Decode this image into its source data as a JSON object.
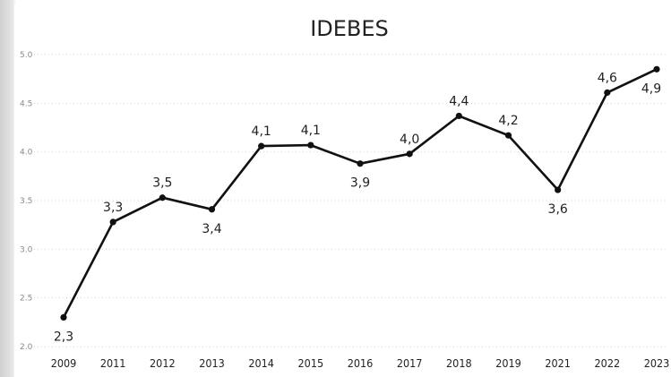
{
  "chart_data": {
    "type": "line",
    "title": "IDEBES",
    "xlabel": "",
    "ylabel": "",
    "categories": [
      "2009",
      "2011",
      "2012",
      "2013",
      "2014",
      "2015",
      "2016",
      "2017",
      "2018",
      "2019",
      "2021",
      "2022",
      "2023"
    ],
    "values": [
      2.3,
      3.28,
      3.53,
      3.41,
      4.06,
      4.07,
      3.88,
      3.98,
      4.37,
      4.17,
      3.61,
      4.61,
      4.85
    ],
    "data_labels": [
      "2,3",
      "3,3",
      "3,5",
      "3,4",
      "4,1",
      "4,1",
      "3,9",
      "4,0",
      "4,4",
      "4,2",
      "3,6",
      "4,6",
      "4,9"
    ],
    "label_positions": [
      "below",
      "above",
      "above",
      "below",
      "above",
      "above",
      "below",
      "above",
      "above",
      "above",
      "below",
      "above",
      "below"
    ],
    "ylim": [
      2.0,
      5.0
    ],
    "yticks": [
      "2.0",
      "2.5",
      "3.0",
      "3.5",
      "4.0",
      "4.5",
      "5.0"
    ],
    "grid": true,
    "line_color": "#111111",
    "marker_color": "#111111"
  }
}
